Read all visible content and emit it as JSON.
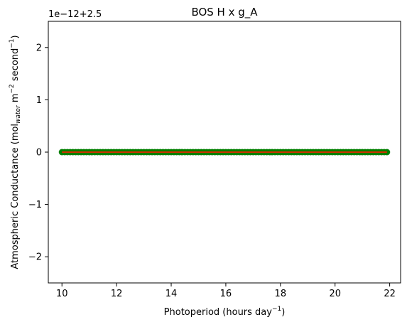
{
  "chart_data": {
    "type": "scatter",
    "title": "BOS H x g_A",
    "xlabel": {
      "main": "Photoperiod (hours day",
      "sup": "−1",
      "tail": ")"
    },
    "ylabel": {
      "p1": "Atmospheric Conductance (mol",
      "sub": "water",
      "p2": " m",
      "sup1": "−2",
      "p3": " second",
      "sup2": "−1",
      "p4": ")"
    },
    "y_offset_label": "1e−12+2.5",
    "xlim": [
      9.5,
      22.4
    ],
    "ylim": [
      -2.5,
      2.5
    ],
    "x_ticks": [
      10,
      12,
      14,
      16,
      18,
      20,
      22
    ],
    "y_ticks": [
      -2,
      -1,
      0,
      1,
      2
    ],
    "x_tick_labels": [
      "10",
      "12",
      "14",
      "16",
      "18",
      "20",
      "22"
    ],
    "y_tick_labels": [
      "−2",
      "−1",
      "0",
      "1",
      "2"
    ],
    "grid": false,
    "series": [
      {
        "kind": "scatter",
        "color": "#008000",
        "x_start": 10.0,
        "x_end": 21.9,
        "y": 0
      },
      {
        "kind": "line",
        "color": "#cc3300",
        "x": [
          10.0,
          21.9
        ],
        "y": [
          0,
          0
        ]
      }
    ]
  }
}
